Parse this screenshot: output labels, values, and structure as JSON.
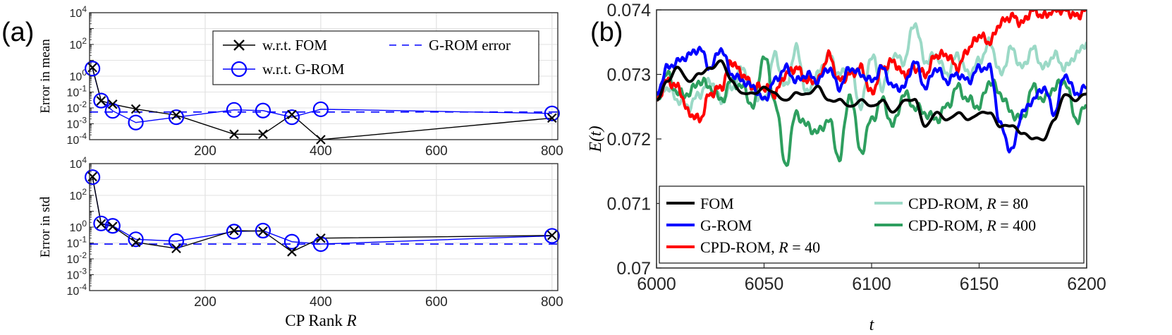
{
  "panel_labels": {
    "a": "(a)",
    "b": "(b)"
  },
  "colors": {
    "fom": "#000000",
    "grom": "#0000ff",
    "cpd40": "#ff0000",
    "cpd80": "#9bd9c6",
    "cpd400": "#2e9f5f"
  },
  "chart_data": [
    {
      "type": "line",
      "id": "a-top",
      "ylabel": "Error in mean",
      "ylog": true,
      "ylim": [
        0.0001,
        10000
      ],
      "xlim": [
        0,
        810
      ],
      "xticks": [
        200,
        400,
        600,
        800
      ],
      "ytick_labels": [
        {
          "base": "10",
          "exp": "4",
          "value": 10000
        },
        {
          "base": "10",
          "exp": "2",
          "value": 100
        },
        {
          "base": "10",
          "exp": "0",
          "value": 1
        },
        {
          "base": "10",
          "exp": "-1",
          "value": 0.1
        },
        {
          "base": "10",
          "exp": "-2",
          "value": 0.01
        },
        {
          "base": "10",
          "exp": "-3",
          "value": 0.001
        },
        {
          "base": "10",
          "exp": "-4",
          "value": 0.0001
        }
      ],
      "legend": {
        "fom": "w.r.t.  FOM",
        "grom": "w.r.t.  G-ROM",
        "grom_error": "G-ROM error"
      },
      "series": [
        {
          "name": "w.r.t. FOM",
          "x": [
            5,
            20,
            40,
            80,
            150,
            250,
            300,
            350,
            400,
            800
          ],
          "y": [
            3.5,
            0.028,
            0.017,
            0.0085,
            0.0035,
            0.00022,
            0.00022,
            0.0038,
            7e-05,
            0.0023
          ]
        },
        {
          "name": "w.r.t. G-ROM",
          "x": [
            5,
            20,
            40,
            80,
            150,
            250,
            300,
            350,
            400,
            800
          ],
          "y": [
            3.0,
            0.029,
            0.0065,
            0.0012,
            0.0026,
            0.0075,
            0.0068,
            0.0026,
            0.0082,
            0.0045
          ]
        }
      ],
      "reference_line": {
        "name": "G-ROM error",
        "y": 0.0055
      }
    },
    {
      "type": "line",
      "id": "a-bottom",
      "ylabel": "Error in std",
      "xlabel_text": "CP Rank ",
      "xlabel_var": "R",
      "ylog": true,
      "ylim": [
        0.0001,
        10000
      ],
      "xlim": [
        0,
        810
      ],
      "xticks": [
        200,
        400,
        600,
        800
      ],
      "ytick_labels": [
        {
          "base": "10",
          "exp": "4",
          "value": 10000
        },
        {
          "base": "10",
          "exp": "2",
          "value": 100
        },
        {
          "base": "10",
          "exp": "0",
          "value": 1
        },
        {
          "base": "10",
          "exp": "-1",
          "value": 0.1
        },
        {
          "base": "10",
          "exp": "-2",
          "value": 0.01
        },
        {
          "base": "10",
          "exp": "-3",
          "value": 0.001
        },
        {
          "base": "10",
          "exp": "-4",
          "value": 0.0001
        }
      ],
      "series": [
        {
          "name": "w.r.t. FOM",
          "x": [
            5,
            20,
            40,
            80,
            150,
            250,
            300,
            350,
            400,
            800
          ],
          "y": [
            1500,
            1.6,
            1.1,
            0.11,
            0.045,
            0.6,
            0.55,
            0.028,
            0.2,
            0.3
          ]
        },
        {
          "name": "w.r.t. G-ROM",
          "x": [
            5,
            20,
            40,
            80,
            150,
            250,
            300,
            350,
            400,
            800
          ],
          "y": [
            1400,
            1.7,
            1.2,
            0.17,
            0.13,
            0.52,
            0.6,
            0.12,
            0.085,
            0.28
          ]
        }
      ],
      "reference_line": {
        "name": "G-ROM error",
        "y": 0.085
      }
    },
    {
      "type": "line",
      "id": "b",
      "ylabel": "E(t)",
      "xlabel": "t",
      "xlim": [
        6000,
        6200
      ],
      "ylim": [
        0.07,
        0.074
      ],
      "xticks": [
        6000,
        6050,
        6100,
        6150,
        6200
      ],
      "xtick_labels": [
        "6000",
        "6050",
        "6100",
        "6150",
        "6200"
      ],
      "yticks": [
        0.07,
        0.071,
        0.072,
        0.073,
        0.074
      ],
      "ytick_labels": [
        "0.07",
        "0.071",
        "0.072",
        "0.073",
        "0.074"
      ],
      "legend": {
        "fom": "FOM",
        "grom": "G-ROM",
        "cpd40_prefix": "CPD-ROM, ",
        "cpd40_eq": " = 40",
        "cpd80_prefix": "CPD-ROM, ",
        "cpd80_eq": " = 80",
        "cpd400_prefix": "CPD-ROM, ",
        "cpd400_eq": " = 400",
        "rvar": "R"
      },
      "series": [
        {
          "name": "FOM",
          "x": [
            6000,
            6005,
            6010,
            6015,
            6020,
            6025,
            6030,
            6035,
            6040,
            6045,
            6050,
            6055,
            6060,
            6065,
            6070,
            6075,
            6080,
            6085,
            6090,
            6095,
            6100,
            6105,
            6110,
            6115,
            6120,
            6125,
            6130,
            6135,
            6140,
            6145,
            6150,
            6155,
            6160,
            6165,
            6170,
            6175,
            6180,
            6185,
            6190,
            6195,
            6200
          ],
          "y": [
            0.0726,
            0.0729,
            0.0731,
            0.0729,
            0.073,
            0.0731,
            0.0732,
            0.0729,
            0.0727,
            0.0727,
            0.0728,
            0.0727,
            0.0726,
            0.0727,
            0.0727,
            0.0728,
            0.0726,
            0.0726,
            0.0725,
            0.0726,
            0.0725,
            0.0726,
            0.0724,
            0.0726,
            0.0726,
            0.0722,
            0.0724,
            0.0723,
            0.0724,
            0.0723,
            0.0724,
            0.0724,
            0.0722,
            0.0722,
            0.0721,
            0.072,
            0.072,
            0.0723,
            0.0727,
            0.0726,
            0.0727
          ]
        },
        {
          "name": "G-ROM",
          "x": [
            6000,
            6005,
            6010,
            6015,
            6020,
            6025,
            6030,
            6035,
            6040,
            6045,
            6050,
            6055,
            6060,
            6065,
            6070,
            6075,
            6080,
            6085,
            6090,
            6095,
            6100,
            6105,
            6110,
            6115,
            6120,
            6125,
            6130,
            6135,
            6140,
            6145,
            6150,
            6155,
            6160,
            6165,
            6170,
            6175,
            6180,
            6185,
            6190,
            6195,
            6200
          ],
          "y": [
            0.0727,
            0.0731,
            0.0732,
            0.0733,
            0.0734,
            0.0731,
            0.0734,
            0.073,
            0.0729,
            0.0728,
            0.0726,
            0.0729,
            0.0731,
            0.0729,
            0.073,
            0.0729,
            0.0731,
            0.0728,
            0.0731,
            0.073,
            0.0729,
            0.0731,
            0.0728,
            0.0728,
            0.0732,
            0.0728,
            0.0731,
            0.0729,
            0.073,
            0.0729,
            0.0731,
            0.0731,
            0.0722,
            0.0718,
            0.0724,
            0.0726,
            0.0728,
            0.0724,
            0.073,
            0.0727,
            0.0728
          ]
        },
        {
          "name": "CPD-ROM, R = 40",
          "x": [
            6000,
            6005,
            6010,
            6015,
            6020,
            6025,
            6030,
            6035,
            6040,
            6045,
            6050,
            6055,
            6060,
            6065,
            6070,
            6075,
            6080,
            6085,
            6090,
            6095,
            6100,
            6105,
            6110,
            6115,
            6120,
            6125,
            6130,
            6135,
            6140,
            6145,
            6150,
            6155,
            6160,
            6165,
            6170,
            6175,
            6180,
            6185,
            6190,
            6195,
            6200
          ],
          "y": [
            0.0726,
            0.0729,
            0.0728,
            0.0724,
            0.0723,
            0.0727,
            0.0728,
            0.0732,
            0.073,
            0.0728,
            0.0728,
            0.0727,
            0.073,
            0.0731,
            0.0729,
            0.0729,
            0.0733,
            0.0729,
            0.073,
            0.0731,
            0.0727,
            0.0731,
            0.0732,
            0.073,
            0.0731,
            0.073,
            0.0733,
            0.0733,
            0.0731,
            0.0734,
            0.0736,
            0.0735,
            0.0738,
            0.0739,
            0.0738,
            0.074,
            0.0739,
            0.074,
            0.074,
            0.0739,
            0.074
          ]
        },
        {
          "name": "CPD-ROM, R = 80",
          "x": [
            6000,
            6005,
            6010,
            6015,
            6020,
            6025,
            6030,
            6035,
            6040,
            6045,
            6050,
            6055,
            6060,
            6065,
            6070,
            6075,
            6080,
            6085,
            6090,
            6095,
            6100,
            6105,
            6110,
            6115,
            6120,
            6125,
            6130,
            6135,
            6140,
            6145,
            6150,
            6155,
            6160,
            6165,
            6170,
            6175,
            6180,
            6185,
            6190,
            6195,
            6200
          ],
          "y": [
            0.0727,
            0.0728,
            0.0726,
            0.0725,
            0.0727,
            0.0729,
            0.0726,
            0.0728,
            0.0731,
            0.0727,
            0.0726,
            0.0733,
            0.0728,
            0.0734,
            0.0727,
            0.073,
            0.0733,
            0.073,
            0.0731,
            0.0725,
            0.0733,
            0.0728,
            0.0733,
            0.0732,
            0.0738,
            0.0732,
            0.0733,
            0.073,
            0.0733,
            0.073,
            0.0732,
            0.0735,
            0.073,
            0.0734,
            0.0731,
            0.0734,
            0.0731,
            0.0733,
            0.0731,
            0.0733,
            0.0735
          ]
        },
        {
          "name": "CPD-ROM, R = 400",
          "x": [
            6000,
            6005,
            6010,
            6015,
            6020,
            6025,
            6030,
            6035,
            6040,
            6045,
            6050,
            6055,
            6060,
            6065,
            6070,
            6075,
            6080,
            6085,
            6090,
            6095,
            6100,
            6105,
            6110,
            6115,
            6120,
            6125,
            6130,
            6135,
            6140,
            6145,
            6150,
            6155,
            6160,
            6165,
            6170,
            6175,
            6180,
            6185,
            6190,
            6195,
            6200
          ],
          "y": [
            0.0726,
            0.073,
            0.0727,
            0.0727,
            0.0729,
            0.0728,
            0.0726,
            0.0729,
            0.0728,
            0.0725,
            0.0733,
            0.0726,
            0.0716,
            0.0724,
            0.0722,
            0.0721,
            0.0723,
            0.0717,
            0.0727,
            0.0718,
            0.0723,
            0.0726,
            0.0722,
            0.0727,
            0.0725,
            0.0724,
            0.0723,
            0.0725,
            0.0728,
            0.0726,
            0.0725,
            0.0729,
            0.0727,
            0.0724,
            0.0723,
            0.0728,
            0.0726,
            0.0728,
            0.0729,
            0.0723,
            0.0725
          ]
        }
      ]
    }
  ]
}
